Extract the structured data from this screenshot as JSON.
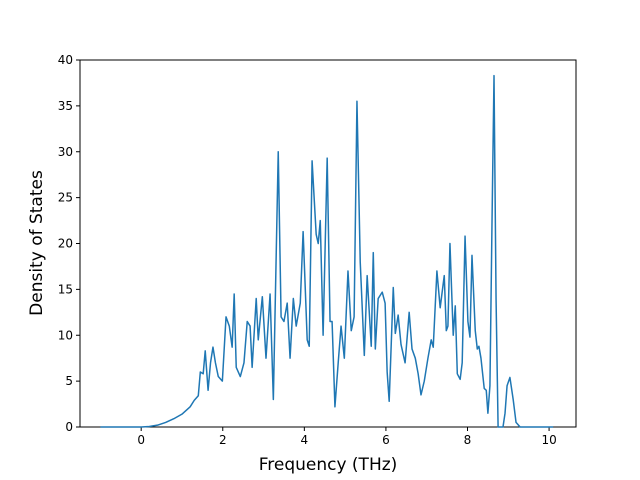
{
  "chart_data": {
    "type": "line",
    "x_label": "Frequency (THz)",
    "y_label": "Density of States",
    "xlim": [
      -1.5,
      10.66
    ],
    "ylim": [
      0,
      40
    ],
    "xticks": [
      0,
      2,
      4,
      6,
      8,
      10
    ],
    "yticks": [
      0,
      5,
      10,
      15,
      20,
      25,
      30,
      35,
      40
    ],
    "grid": false,
    "series": [
      {
        "color": "#1f77b4",
        "x": [
          -1,
          -0.5,
          0,
          0.2,
          0.4,
          0.6,
          0.8,
          1.0,
          1.2,
          1.3,
          1.4,
          1.45,
          1.52,
          1.57,
          1.64,
          1.7,
          1.76,
          1.82,
          1.89,
          1.99,
          2.08,
          2.16,
          2.23,
          2.28,
          2.33,
          2.43,
          2.52,
          2.6,
          2.67,
          2.72,
          2.82,
          2.87,
          2.97,
          3.06,
          3.16,
          3.24,
          3.36,
          3.43,
          3.5,
          3.58,
          3.65,
          3.73,
          3.8,
          3.9,
          3.97,
          4.07,
          4.12,
          4.19,
          4.29,
          4.34,
          4.39,
          4.46,
          4.56,
          4.63,
          4.68,
          4.75,
          4.83,
          4.9,
          4.98,
          5.07,
          5.15,
          5.22,
          5.29,
          5.37,
          5.47,
          5.54,
          5.64,
          5.69,
          5.74,
          5.81,
          5.91,
          5.98,
          6.03,
          6.08,
          6.18,
          6.23,
          6.3,
          6.37,
          6.47,
          6.57,
          6.64,
          6.72,
          6.79,
          6.86,
          6.94,
          7.03,
          7.11,
          7.16,
          7.25,
          7.33,
          7.43,
          7.48,
          7.52,
          7.57,
          7.65,
          7.7,
          7.75,
          7.82,
          7.87,
          7.94,
          8.01,
          8.06,
          8.11,
          8.19,
          8.24,
          8.28,
          8.33,
          8.41,
          8.46,
          8.5,
          8.55,
          8.6,
          8.65,
          8.7,
          8.75,
          8.87,
          8.92,
          8.97,
          9.04,
          9.12,
          9.19,
          9.29,
          9.6,
          10.1
        ],
        "values": [
          0,
          0,
          0,
          0.05,
          0.2,
          0.5,
          0.9,
          1.4,
          2.2,
          2.9,
          3.4,
          6,
          5.8,
          8.3,
          4,
          7,
          8.7,
          7,
          5.5,
          5,
          12,
          11,
          8.7,
          14.5,
          6.5,
          5.5,
          7,
          11.5,
          11,
          6.5,
          14,
          9.5,
          14.2,
          7.5,
          14.5,
          3,
          30,
          12,
          11.5,
          13.5,
          7.5,
          14,
          11,
          13.5,
          21.3,
          9.5,
          8.8,
          29,
          21,
          20,
          22.5,
          10,
          29.3,
          11.5,
          11.5,
          2.2,
          7,
          11,
          7.5,
          17,
          10.5,
          12,
          35.5,
          18,
          7.8,
          16.5,
          8.8,
          19,
          8.5,
          14,
          14.7,
          13.5,
          6,
          2.8,
          15.2,
          10.2,
          12.2,
          9,
          7,
          12.5,
          8.5,
          7.5,
          5.8,
          3.5,
          5,
          7.5,
          9.5,
          8.7,
          17,
          13,
          16.5,
          10.5,
          11,
          20,
          10,
          13.2,
          5.8,
          5.2,
          7,
          20.8,
          11.5,
          9.8,
          18.7,
          10.5,
          8.5,
          8.8,
          7.5,
          4.2,
          4,
          1.5,
          4.5,
          22,
          38.3,
          14,
          0,
          0,
          1.5,
          4.5,
          5.4,
          3,
          0.5,
          0,
          0,
          0
        ]
      }
    ]
  }
}
